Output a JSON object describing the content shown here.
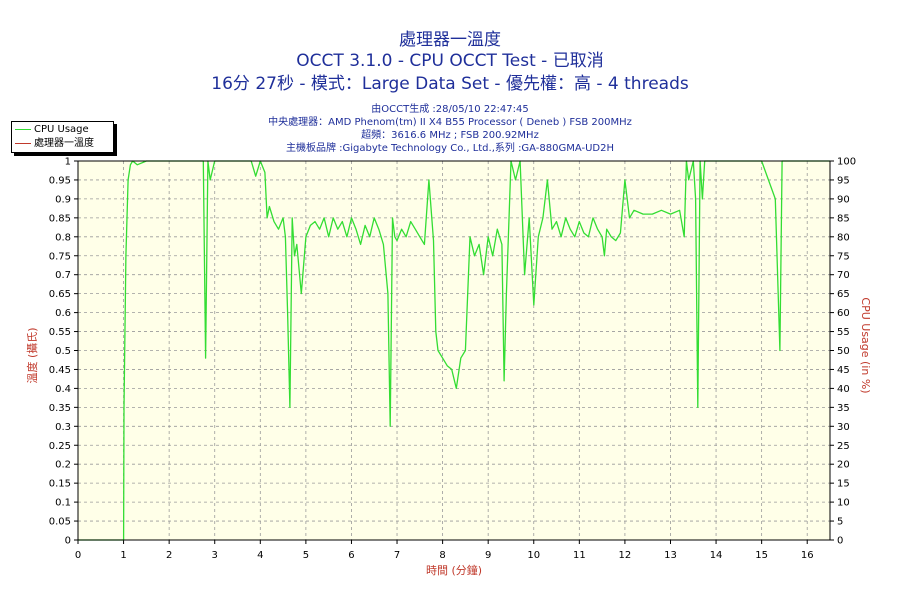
{
  "header": {
    "title_line1": "處理器一溫度",
    "title_line2": "OCCT 3.1.0 - CPU OCCT Test - 已取消",
    "title_line3": "16分 27秒 - 模式：Large Data Set - 優先權：高 - 4 threads",
    "info_line1": "由OCCT生成 :28/05/10 22:47:45",
    "info_line2": "中央處理器：AMD Phenom(tm) II X4 B55 Processor ( Deneb ) FSB 200MHz",
    "info_line3": "超頻：3616.6 MHz ; FSB 200.92MHz",
    "info_line4": "主機板品牌 :Gigabyte Technology Co., Ltd.,系列 :GA-880GMA-UD2H"
  },
  "legend": {
    "items": [
      {
        "label": "CPU Usage",
        "color": "#33dd33"
      },
      {
        "label": "處理器一溫度",
        "color": "#c0392b"
      }
    ]
  },
  "chart_data": {
    "type": "line",
    "xlabel": "時間 (分鐘)",
    "ylabel_left": "溫度 (攝氏)",
    "ylabel_right": "CPU Usage (in %)",
    "xlim": [
      0,
      16.5
    ],
    "ylim_left": [
      0,
      1
    ],
    "ylim_right": [
      0,
      100
    ],
    "x_ticks": [
      "0",
      "1",
      "2",
      "3",
      "4",
      "5",
      "6",
      "7",
      "8",
      "9",
      "10",
      "11",
      "12",
      "13",
      "14",
      "15",
      "16"
    ],
    "y_left_ticks": [
      "0",
      "0.05",
      "0.1",
      "0.15",
      "0.2",
      "0.25",
      "0.3",
      "0.35",
      "0.4",
      "0.45",
      "0.5",
      "0.55",
      "0.6",
      "0.65",
      "0.7",
      "0.75",
      "0.8",
      "0.85",
      "0.9",
      "0.95",
      "1"
    ],
    "y_right_ticks": [
      "0",
      "5",
      "10",
      "15",
      "20",
      "25",
      "30",
      "35",
      "40",
      "45",
      "50",
      "55",
      "60",
      "65",
      "70",
      "75",
      "80",
      "85",
      "90",
      "95",
      "100"
    ],
    "grid": true,
    "plot_background": "#ffffe8",
    "series": [
      {
        "name": "CPU Usage",
        "color": "#33dd33",
        "axis": "right",
        "x": [
          0,
          1.0,
          1.01,
          1.05,
          1.1,
          1.15,
          1.2,
          1.3,
          1.5,
          2.0,
          2.5,
          2.75,
          2.8,
          2.85,
          2.9,
          3.0,
          3.5,
          3.8,
          3.9,
          4.0,
          4.1,
          4.15,
          4.2,
          4.3,
          4.4,
          4.5,
          4.55,
          4.6,
          4.65,
          4.7,
          4.75,
          4.8,
          4.9,
          5.0,
          5.1,
          5.2,
          5.3,
          5.4,
          5.5,
          5.6,
          5.7,
          5.8,
          5.9,
          6.0,
          6.1,
          6.2,
          6.3,
          6.4,
          6.5,
          6.6,
          6.7,
          6.8,
          6.85,
          6.9,
          6.95,
          7.0,
          7.1,
          7.2,
          7.3,
          7.4,
          7.5,
          7.6,
          7.7,
          7.8,
          7.85,
          7.9,
          8.0,
          8.1,
          8.2,
          8.3,
          8.4,
          8.5,
          8.6,
          8.7,
          8.8,
          8.9,
          9.0,
          9.1,
          9.2,
          9.3,
          9.35,
          9.4,
          9.5,
          9.6,
          9.7,
          9.8,
          9.9,
          10.0,
          10.1,
          10.2,
          10.3,
          10.4,
          10.5,
          10.6,
          10.7,
          10.8,
          10.9,
          11.0,
          11.1,
          11.2,
          11.3,
          11.4,
          11.5,
          11.55,
          11.6,
          11.7,
          11.8,
          11.9,
          12.0,
          12.05,
          12.1,
          12.2,
          12.4,
          12.6,
          12.8,
          13.0,
          13.2,
          13.3,
          13.35,
          13.4,
          13.5,
          13.55,
          13.6,
          13.65,
          13.7,
          13.75,
          13.8,
          14.0,
          14.5,
          15.0,
          15.3,
          15.4,
          15.45,
          15.5,
          15.6,
          16.0,
          16.5
        ],
        "values": [
          0,
          0,
          35,
          75,
          95,
          99,
          100,
          99,
          100,
          100,
          100,
          100,
          48,
          100,
          95,
          100,
          100,
          100,
          96,
          100,
          97,
          85,
          88,
          84,
          82,
          85,
          80,
          60,
          35,
          85,
          75,
          78,
          65,
          80,
          83,
          84,
          82,
          85,
          80,
          85,
          82,
          84,
          80,
          85,
          82,
          78,
          83,
          80,
          85,
          82,
          78,
          65,
          30,
          85,
          80,
          79,
          82,
          80,
          84,
          82,
          80,
          78,
          95,
          79,
          55,
          50,
          48,
          46,
          45,
          40,
          48,
          50,
          80,
          75,
          78,
          70,
          80,
          75,
          82,
          78,
          42,
          65,
          100,
          95,
          100,
          70,
          85,
          62,
          80,
          85,
          95,
          82,
          84,
          80,
          85,
          82,
          80,
          84,
          81,
          80,
          85,
          82,
          80,
          75,
          82,
          80,
          79,
          81,
          95,
          90,
          85,
          87,
          86,
          86,
          87,
          86,
          87,
          80,
          100,
          95,
          100,
          90,
          35,
          100,
          90,
          100,
          100,
          100,
          100,
          100,
          90,
          50,
          100,
          100,
          100,
          100,
          100
        ]
      },
      {
        "name": "處理器一溫度",
        "color": "#c0392b",
        "axis": "left",
        "x": [],
        "values": []
      }
    ]
  }
}
